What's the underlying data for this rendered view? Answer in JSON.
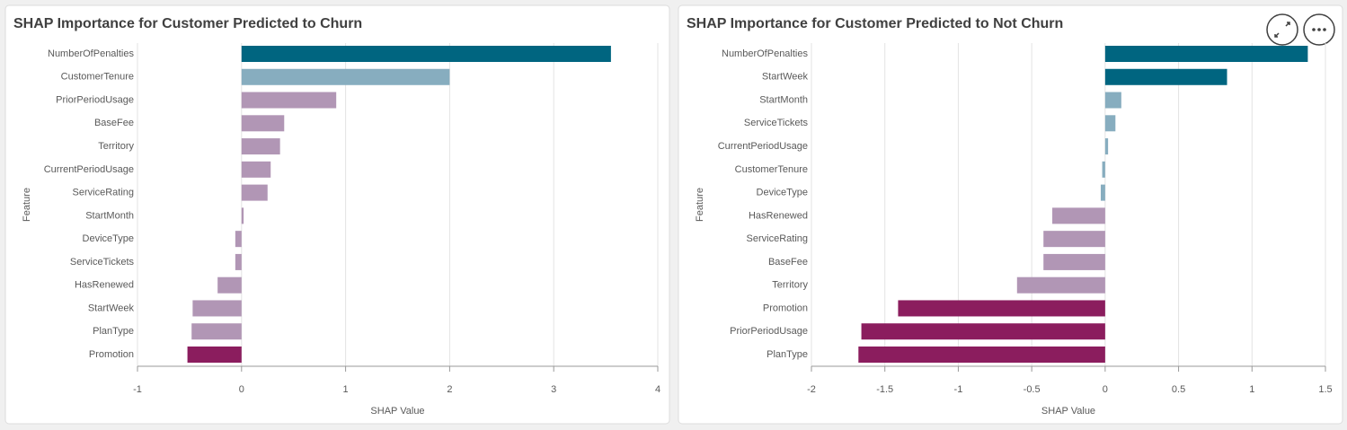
{
  "chart_data": [
    {
      "type": "barh",
      "title": "SHAP Importance for Customer Predicted to Churn",
      "x_label": "SHAP Value",
      "y_label": "Feature",
      "categories": [
        "NumberOfPenalties",
        "CustomerTenure",
        "PriorPeriodUsage",
        "BaseFee",
        "Territory",
        "CurrentPeriodUsage",
        "ServiceRating",
        "StartMonth",
        "DeviceType",
        "ServiceTickets",
        "HasRenewed",
        "StartWeek",
        "PlanType",
        "Promotion"
      ],
      "values": [
        3.55,
        2.0,
        0.91,
        0.41,
        0.37,
        0.28,
        0.25,
        0.02,
        -0.06,
        -0.06,
        -0.23,
        -0.47,
        -0.48,
        -0.52
      ],
      "colors": [
        "#006580",
        "#87adbf",
        "#b196b5",
        "#b196b5",
        "#b196b5",
        "#b196b5",
        "#b196b5",
        "#b196b5",
        "#b196b5",
        "#b196b5",
        "#b196b5",
        "#b196b5",
        "#b196b5",
        "#8b1d5e"
      ],
      "xlim": [
        -1,
        4
      ],
      "xticks": [
        -1,
        0,
        1,
        2,
        3,
        4
      ],
      "grid": true
    },
    {
      "type": "barh",
      "title": "SHAP Importance for Customer Predicted to Not Churn",
      "x_label": "SHAP Value",
      "y_label": "Feature",
      "categories": [
        "NumberOfPenalties",
        "StartWeek",
        "StartMonth",
        "ServiceTickets",
        "CurrentPeriodUsage",
        "CustomerTenure",
        "DeviceType",
        "HasRenewed",
        "ServiceRating",
        "BaseFee",
        "Territory",
        "Promotion",
        "PriorPeriodUsage",
        "PlanType"
      ],
      "values": [
        1.38,
        0.83,
        0.11,
        0.07,
        0.02,
        -0.02,
        -0.03,
        -0.36,
        -0.42,
        -0.42,
        -0.6,
        -1.41,
        -1.66,
        -1.68
      ],
      "colors": [
        "#006580",
        "#006580",
        "#87adbf",
        "#87adbf",
        "#87adbf",
        "#87adbf",
        "#87adbf",
        "#b196b5",
        "#b196b5",
        "#b196b5",
        "#b196b5",
        "#8b1d5e",
        "#8b1d5e",
        "#8b1d5e"
      ],
      "xlim": [
        -2,
        1.5
      ],
      "xticks": [
        -2,
        -1.5,
        -1,
        -0.5,
        0,
        0.5,
        1,
        1.5
      ],
      "grid": true
    }
  ]
}
